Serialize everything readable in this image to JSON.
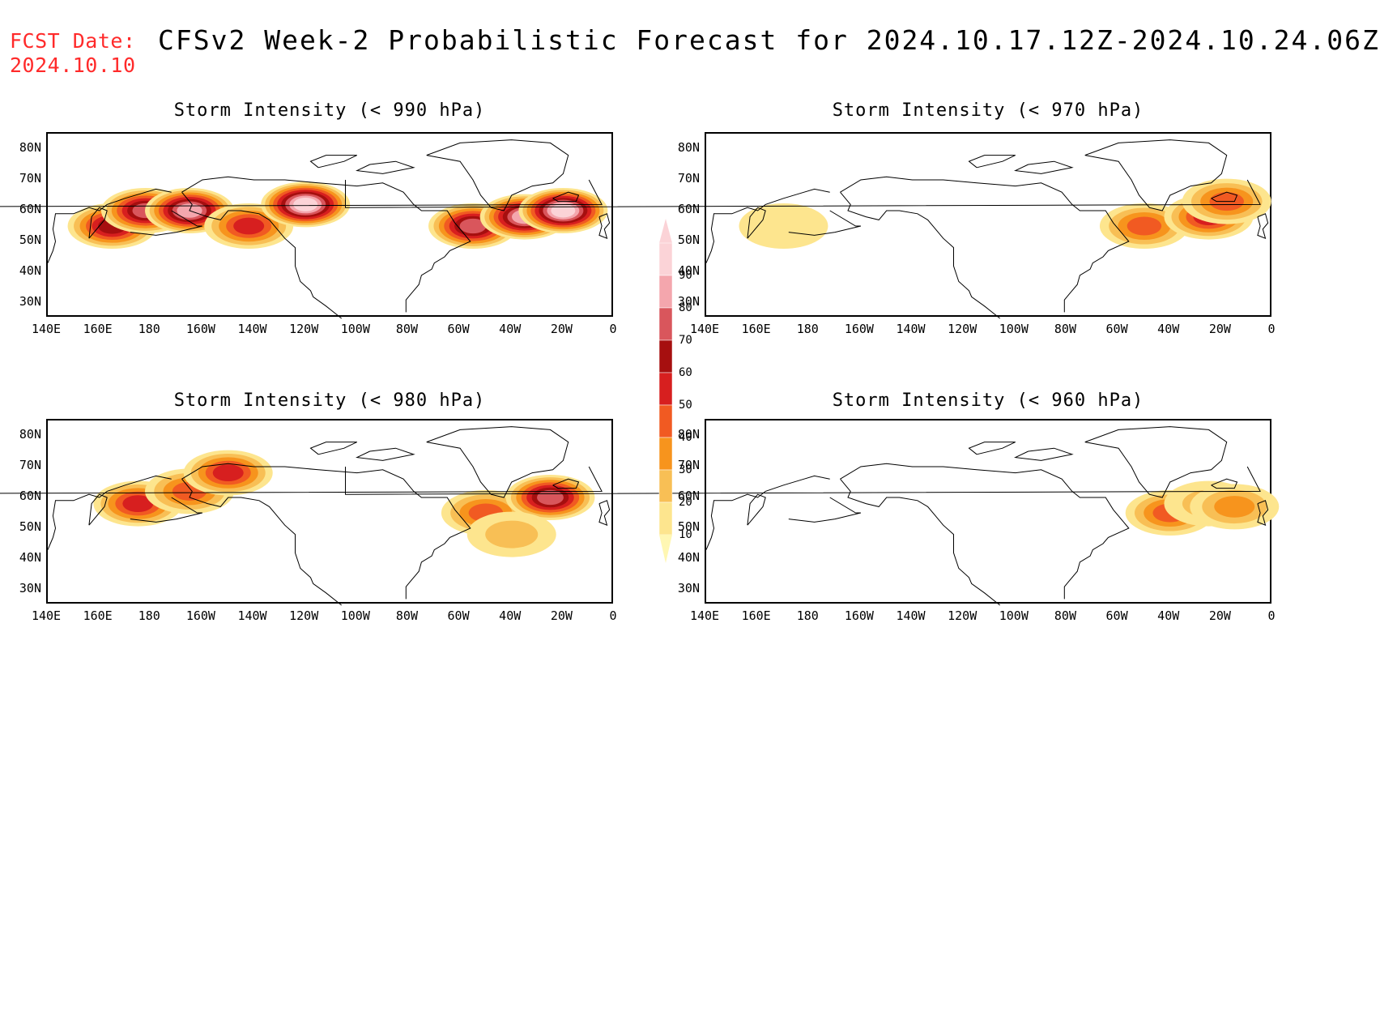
{
  "header": {
    "fcst_label": "FCST Date:",
    "fcst_date": "2024.10.10",
    "title": "CFSv2 Week-2 Probabilistic Forecast for 2024.10.17.12Z-2024.10.24.06Z"
  },
  "panels": [
    {
      "title": "Storm Intensity (< 990 hPa)",
      "threshold_hpa": 990,
      "blobs": [
        {
          "lon": 165,
          "lat": 55,
          "prob": 60
        },
        {
          "lon": 178,
          "lat": 60,
          "prob": 75
        },
        {
          "lon": -165,
          "lat": 60,
          "prob": 85
        },
        {
          "lon": -142,
          "lat": 55,
          "prob": 50
        },
        {
          "lon": -120,
          "lat": 62,
          "prob": 90
        },
        {
          "lon": -55,
          "lat": 55,
          "prob": 70
        },
        {
          "lon": -35,
          "lat": 58,
          "prob": 80
        },
        {
          "lon": -20,
          "lat": 60,
          "prob": 90
        }
      ]
    },
    {
      "title": "Storm Intensity (< 970 hPa)",
      "threshold_hpa": 970,
      "blobs": [
        {
          "lon": 170,
          "lat": 55,
          "prob": 15
        },
        {
          "lon": -50,
          "lat": 55,
          "prob": 40
        },
        {
          "lon": -25,
          "lat": 58,
          "prob": 50
        },
        {
          "lon": -18,
          "lat": 63,
          "prob": 45
        }
      ]
    },
    {
      "title": "Storm Intensity (< 980 hPa)",
      "threshold_hpa": 980,
      "blobs": [
        {
          "lon": 175,
          "lat": 58,
          "prob": 55
        },
        {
          "lon": -165,
          "lat": 62,
          "prob": 40
        },
        {
          "lon": -150,
          "lat": 68,
          "prob": 50
        },
        {
          "lon": -50,
          "lat": 55,
          "prob": 45
        },
        {
          "lon": -25,
          "lat": 60,
          "prob": 70
        },
        {
          "lon": -40,
          "lat": 48,
          "prob": 25
        }
      ]
    },
    {
      "title": "Storm Intensity (< 960 hPa)",
      "threshold_hpa": 960,
      "blobs": [
        {
          "lon": -40,
          "lat": 55,
          "prob": 40
        },
        {
          "lon": -25,
          "lat": 58,
          "prob": 20
        },
        {
          "lon": -15,
          "lat": 57,
          "prob": 30
        }
      ]
    }
  ],
  "lat_ticks": [
    "80N",
    "70N",
    "60N",
    "50N",
    "40N",
    "30N"
  ],
  "lat_values": [
    80,
    70,
    60,
    50,
    40,
    30
  ],
  "lon_ticks": [
    "140E",
    "160E",
    "180",
    "160W",
    "140W",
    "120W",
    "100W",
    "80W",
    "60W",
    "40W",
    "20W",
    "0"
  ],
  "lon_values": [
    140,
    160,
    180,
    200,
    220,
    240,
    260,
    280,
    300,
    320,
    340,
    360
  ],
  "colorbar": {
    "levels": [
      10,
      20,
      30,
      40,
      50,
      60,
      70,
      80,
      90
    ],
    "colors": [
      "#fff7b3",
      "#fde58e",
      "#f8bf55",
      "#f7941d",
      "#f15a22",
      "#d71f1f",
      "#a60f0f",
      "#d9565c",
      "#f4a6ad",
      "#fbd3d7"
    ]
  }
}
